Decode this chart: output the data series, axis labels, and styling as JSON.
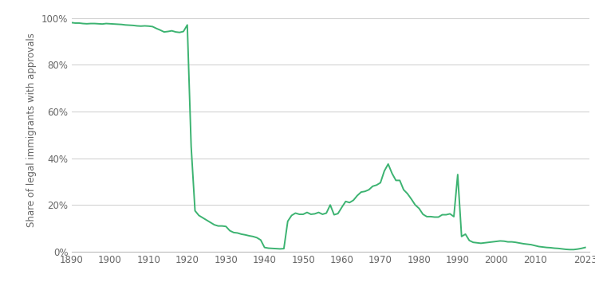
{
  "title": "",
  "ylabel": "Share of legal immigrants with approvals",
  "line_color": "#3cb371",
  "background_color": "#ffffff",
  "grid_color": "#cccccc",
  "xlim": [
    1890,
    2024
  ],
  "ylim": [
    0,
    1.04
  ],
  "xticks": [
    1890,
    1900,
    1910,
    1920,
    1930,
    1940,
    1950,
    1960,
    1970,
    1980,
    1990,
    2000,
    2010,
    2023
  ],
  "yticks": [
    0.0,
    0.2,
    0.4,
    0.6,
    0.8,
    1.0
  ],
  "data": {
    "years": [
      1890,
      1891,
      1892,
      1893,
      1894,
      1895,
      1896,
      1897,
      1898,
      1899,
      1900,
      1901,
      1902,
      1903,
      1904,
      1905,
      1906,
      1907,
      1908,
      1909,
      1910,
      1911,
      1912,
      1913,
      1914,
      1915,
      1916,
      1917,
      1918,
      1919,
      1920,
      1921,
      1922,
      1923,
      1924,
      1925,
      1926,
      1927,
      1928,
      1929,
      1930,
      1931,
      1932,
      1933,
      1934,
      1935,
      1936,
      1937,
      1938,
      1939,
      1940,
      1941,
      1942,
      1943,
      1944,
      1945,
      1946,
      1947,
      1948,
      1949,
      1950,
      1951,
      1952,
      1953,
      1954,
      1955,
      1956,
      1957,
      1958,
      1959,
      1960,
      1961,
      1962,
      1963,
      1964,
      1965,
      1966,
      1967,
      1968,
      1969,
      1970,
      1971,
      1972,
      1973,
      1974,
      1975,
      1976,
      1977,
      1978,
      1979,
      1980,
      1981,
      1982,
      1983,
      1984,
      1985,
      1986,
      1987,
      1988,
      1989,
      1990,
      1991,
      1992,
      1993,
      1994,
      1995,
      1996,
      1997,
      1998,
      1999,
      2000,
      2001,
      2002,
      2003,
      2004,
      2005,
      2006,
      2007,
      2008,
      2009,
      2010,
      2011,
      2012,
      2013,
      2014,
      2015,
      2016,
      2017,
      2018,
      2019,
      2020,
      2021,
      2022,
      2023
    ],
    "values": [
      0.98,
      0.978,
      0.978,
      0.976,
      0.975,
      0.976,
      0.976,
      0.975,
      0.974,
      0.976,
      0.975,
      0.974,
      0.973,
      0.972,
      0.97,
      0.969,
      0.968,
      0.966,
      0.965,
      0.966,
      0.965,
      0.963,
      0.955,
      0.948,
      0.94,
      0.942,
      0.945,
      0.94,
      0.938,
      0.942,
      0.97,
      0.45,
      0.175,
      0.155,
      0.145,
      0.135,
      0.125,
      0.115,
      0.11,
      0.11,
      0.108,
      0.09,
      0.082,
      0.08,
      0.075,
      0.072,
      0.068,
      0.065,
      0.06,
      0.05,
      0.018,
      0.015,
      0.014,
      0.013,
      0.012,
      0.013,
      0.13,
      0.155,
      0.165,
      0.16,
      0.16,
      0.168,
      0.16,
      0.162,
      0.168,
      0.16,
      0.165,
      0.2,
      0.158,
      0.163,
      0.19,
      0.215,
      0.21,
      0.22,
      0.24,
      0.255,
      0.258,
      0.265,
      0.28,
      0.285,
      0.295,
      0.345,
      0.375,
      0.335,
      0.305,
      0.305,
      0.265,
      0.248,
      0.225,
      0.2,
      0.185,
      0.16,
      0.15,
      0.15,
      0.148,
      0.148,
      0.158,
      0.158,
      0.162,
      0.15,
      0.33,
      0.065,
      0.075,
      0.048,
      0.04,
      0.038,
      0.036,
      0.038,
      0.04,
      0.042,
      0.044,
      0.046,
      0.045,
      0.042,
      0.042,
      0.04,
      0.037,
      0.034,
      0.032,
      0.03,
      0.026,
      0.022,
      0.02,
      0.018,
      0.017,
      0.015,
      0.014,
      0.012,
      0.01,
      0.009,
      0.009,
      0.011,
      0.014,
      0.018
    ]
  }
}
